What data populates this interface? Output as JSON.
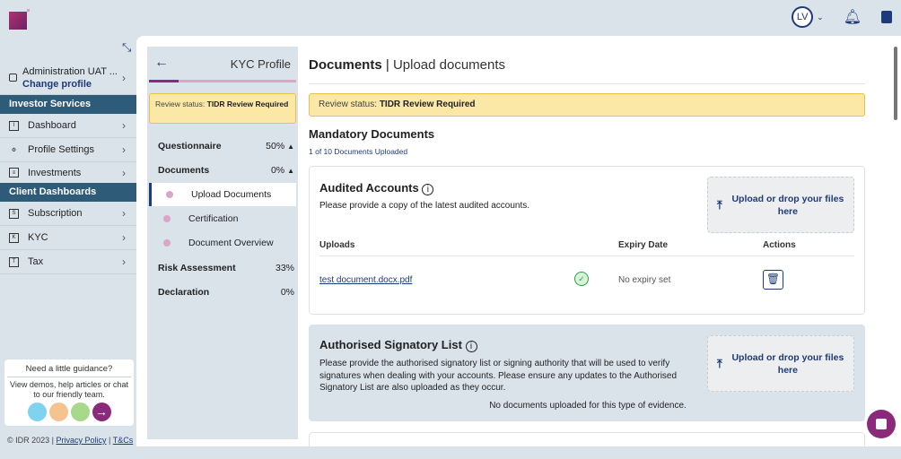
{
  "header": {
    "logo": "IDR",
    "user_initials": "LV"
  },
  "sidebar": {
    "profile_name": "Administration UAT ...",
    "change_profile": "Change profile",
    "sections": [
      {
        "title": "Investor Services",
        "items": [
          {
            "label": "Dashboard"
          },
          {
            "label": "Profile Settings"
          },
          {
            "label": "Investments"
          }
        ]
      },
      {
        "title": "Client Dashboards",
        "items": [
          {
            "label": "Subscription"
          },
          {
            "label": "KYC"
          },
          {
            "label": "Tax"
          }
        ]
      }
    ],
    "guidance": {
      "title": "Need a little guidance?",
      "text": "View demos, help articles or chat to our friendly team."
    },
    "footer": {
      "copyright": "© IDR 2023 |",
      "privacy": "Privacy Policy",
      "sep": "|",
      "terms": "T&Cs"
    }
  },
  "kyc": {
    "title": "KYC Profile",
    "progress": 0.2,
    "review_label": "Review status:",
    "review_value": "TIDR Review Required",
    "steps": [
      {
        "label": "Questionnaire",
        "pct": "50%"
      },
      {
        "label": "Documents",
        "pct": "0%"
      },
      {
        "label": "Upload Documents"
      },
      {
        "label": "Certification"
      },
      {
        "label": "Document Overview"
      },
      {
        "label": "Risk Assessment",
        "pct": "33%"
      },
      {
        "label": "Declaration",
        "pct": "0%"
      }
    ]
  },
  "main": {
    "title": "Documents",
    "sep": "|",
    "subtitle": "Upload documents",
    "review_label": "Review status:",
    "review_value": "TIDR Review Required",
    "section_title": "Mandatory Documents",
    "count": "1 of 10 Documents Uploaded",
    "upload_label": "Upload or drop your files here",
    "cards": [
      {
        "title": "Audited Accounts",
        "desc": "Please provide a copy of the latest audited accounts.",
        "columns": [
          "Uploads",
          "Expiry Date",
          "Actions"
        ],
        "rows": [
          {
            "file": "test document.docx.pdf",
            "expiry": "No expiry set"
          }
        ]
      },
      {
        "title": "Authorised Signatory List",
        "desc": "Please provide the authorised signatory list or signing authority that will be used to verify signatures when dealing with your accounts. Please ensure any updates to the Authorised Signatory List are also uploaded as they occur.",
        "empty": "No documents uploaded for this type of evidence."
      }
    ]
  },
  "colors": {
    "nav": "#2e5b78",
    "accent": "#1e3a78",
    "brand": "#8b2a7a",
    "warning_bg": "#fbe8a6"
  }
}
